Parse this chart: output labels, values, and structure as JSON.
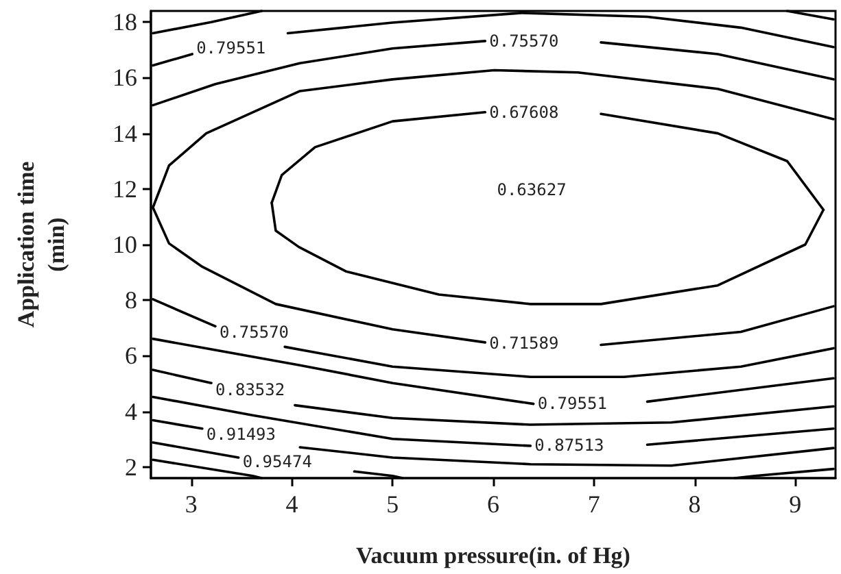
{
  "chart_data": {
    "type": "line",
    "xlabel": "Vacuum pressure(in. of Hg)",
    "ylabel": "Application time (min)",
    "xlim": [
      2.6,
      9.4
    ],
    "ylim": [
      1.6,
      18.4
    ],
    "xticks": [
      3,
      4,
      5,
      6,
      7,
      8,
      9
    ],
    "yticks": [
      2,
      4,
      6,
      8,
      10,
      12,
      14,
      16,
      18
    ],
    "grid": false,
    "marker": "none",
    "line_style": "solid",
    "series": [
      {
        "color": "#000000",
        "x": [
          2.62,
          3.2,
          3.7
        ],
        "values": [
          17.6,
          18.0,
          18.4
        ]
      },
      {
        "color": "#000000",
        "x": [
          8.92,
          9.38
        ],
        "values": [
          18.4,
          18.1
        ]
      },
      {
        "name": "0.79551",
        "color": "#000000",
        "x": [
          2.62,
          3.01,
          3.5,
          3.96,
          5.0,
          6.28,
          7.53,
          8.46,
          9.38
        ],
        "values": [
          16.44,
          16.85,
          null,
          17.6,
          17.98,
          18.33,
          18.19,
          17.8,
          17.1
        ]
      },
      {
        "name": "0.75570",
        "color": "#000000",
        "x": [
          2.62,
          3.24,
          4.08,
          5.0,
          5.92,
          6.5,
          7.07,
          8.23,
          9.38
        ],
        "values": [
          15.01,
          15.77,
          16.52,
          17.05,
          17.32,
          null,
          17.27,
          16.85,
          15.94
        ]
      },
      {
        "color": "#000000",
        "x": [
          2.62,
          2.78,
          3.15,
          4.08,
          5.0,
          6.01,
          6.84,
          8.23,
          9.38
        ],
        "values": [
          11.33,
          12.84,
          14.0,
          15.52,
          15.94,
          16.27,
          16.19,
          15.6,
          14.51
        ]
      },
      {
        "name": "0.71589",
        "color": "#000000",
        "x": [
          2.62,
          2.78,
          3.11,
          3.84,
          5.0,
          5.92,
          6.5,
          7.07,
          8.46,
          9.38
        ],
        "values": [
          11.33,
          10.04,
          9.2,
          7.86,
          6.95,
          6.48,
          null,
          6.39,
          6.86,
          7.78
        ]
      },
      {
        "name": "0.67608",
        "color": "#000000",
        "x": [
          3.8,
          3.9,
          4.23,
          5.0,
          5.92,
          6.5,
          7.07,
          8.23,
          8.92,
          9.28
        ],
        "values": [
          11.5,
          12.5,
          13.5,
          14.43,
          14.76,
          null,
          14.7,
          14.0,
          13.0,
          11.25
        ]
      },
      {
        "color": "#000000",
        "x": [
          3.8,
          3.84,
          4.07,
          4.54,
          5.46,
          6.37,
          7.07,
          8.23,
          9.1,
          9.28
        ],
        "values": [
          11.5,
          10.5,
          9.91,
          9.03,
          8.2,
          7.86,
          7.86,
          8.53,
          10.0,
          11.25
        ]
      },
      {
        "name": "0.75570",
        "color": "#000000",
        "x": [
          2.62,
          3.24,
          3.6,
          3.93,
          5.0,
          6.37,
          7.3,
          8.46,
          9.38
        ],
        "values": [
          8.03,
          7.06,
          null,
          6.32,
          5.61,
          5.24,
          5.24,
          5.61,
          6.27
        ]
      },
      {
        "name": "0.79551",
        "color": "#000000",
        "x": [
          2.62,
          4.08,
          5.0,
          6.4,
          6.9,
          7.53,
          9.38
        ],
        "values": [
          6.61,
          5.66,
          5.02,
          4.27,
          null,
          4.35,
          5.19
        ]
      },
      {
        "name": "0.83532",
        "color": "#000000",
        "x": [
          2.62,
          3.2,
          3.6,
          4.03,
          5.0,
          6.37,
          7.77,
          9.38
        ],
        "values": [
          5.49,
          5.02,
          null,
          4.22,
          3.76,
          3.52,
          3.6,
          4.18
        ]
      },
      {
        "name": "0.87513",
        "color": "#000000",
        "x": [
          2.62,
          3.61,
          5.0,
          6.37,
          6.9,
          7.53,
          9.38
        ],
        "values": [
          4.52,
          3.86,
          3.01,
          2.76,
          null,
          2.8,
          3.38
        ]
      },
      {
        "name": "0.91493",
        "color": "#000000",
        "x": [
          2.62,
          3.11,
          3.6,
          4.08,
          5.0,
          6.37,
          7.77,
          9.38
        ],
        "values": [
          3.68,
          3.38,
          null,
          2.71,
          2.34,
          2.1,
          2.05,
          2.68
        ]
      },
      {
        "name": "0.95474",
        "color": "#000000",
        "x": [
          2.62,
          3.47,
          4.1,
          4.62,
          5.0,
          5.1
        ],
        "values": [
          2.88,
          2.34,
          null,
          1.84,
          1.68,
          1.6
        ]
      },
      {
        "color": "#000000",
        "x": [
          2.62,
          3.61,
          3.7
        ],
        "values": [
          2.26,
          1.68,
          1.6
        ]
      },
      {
        "color": "#000000",
        "x": [
          8.4,
          8.6,
          9.38
        ],
        "values": [
          1.6,
          1.68,
          1.93
        ]
      }
    ],
    "annotations": [
      "0.63627"
    ]
  }
}
